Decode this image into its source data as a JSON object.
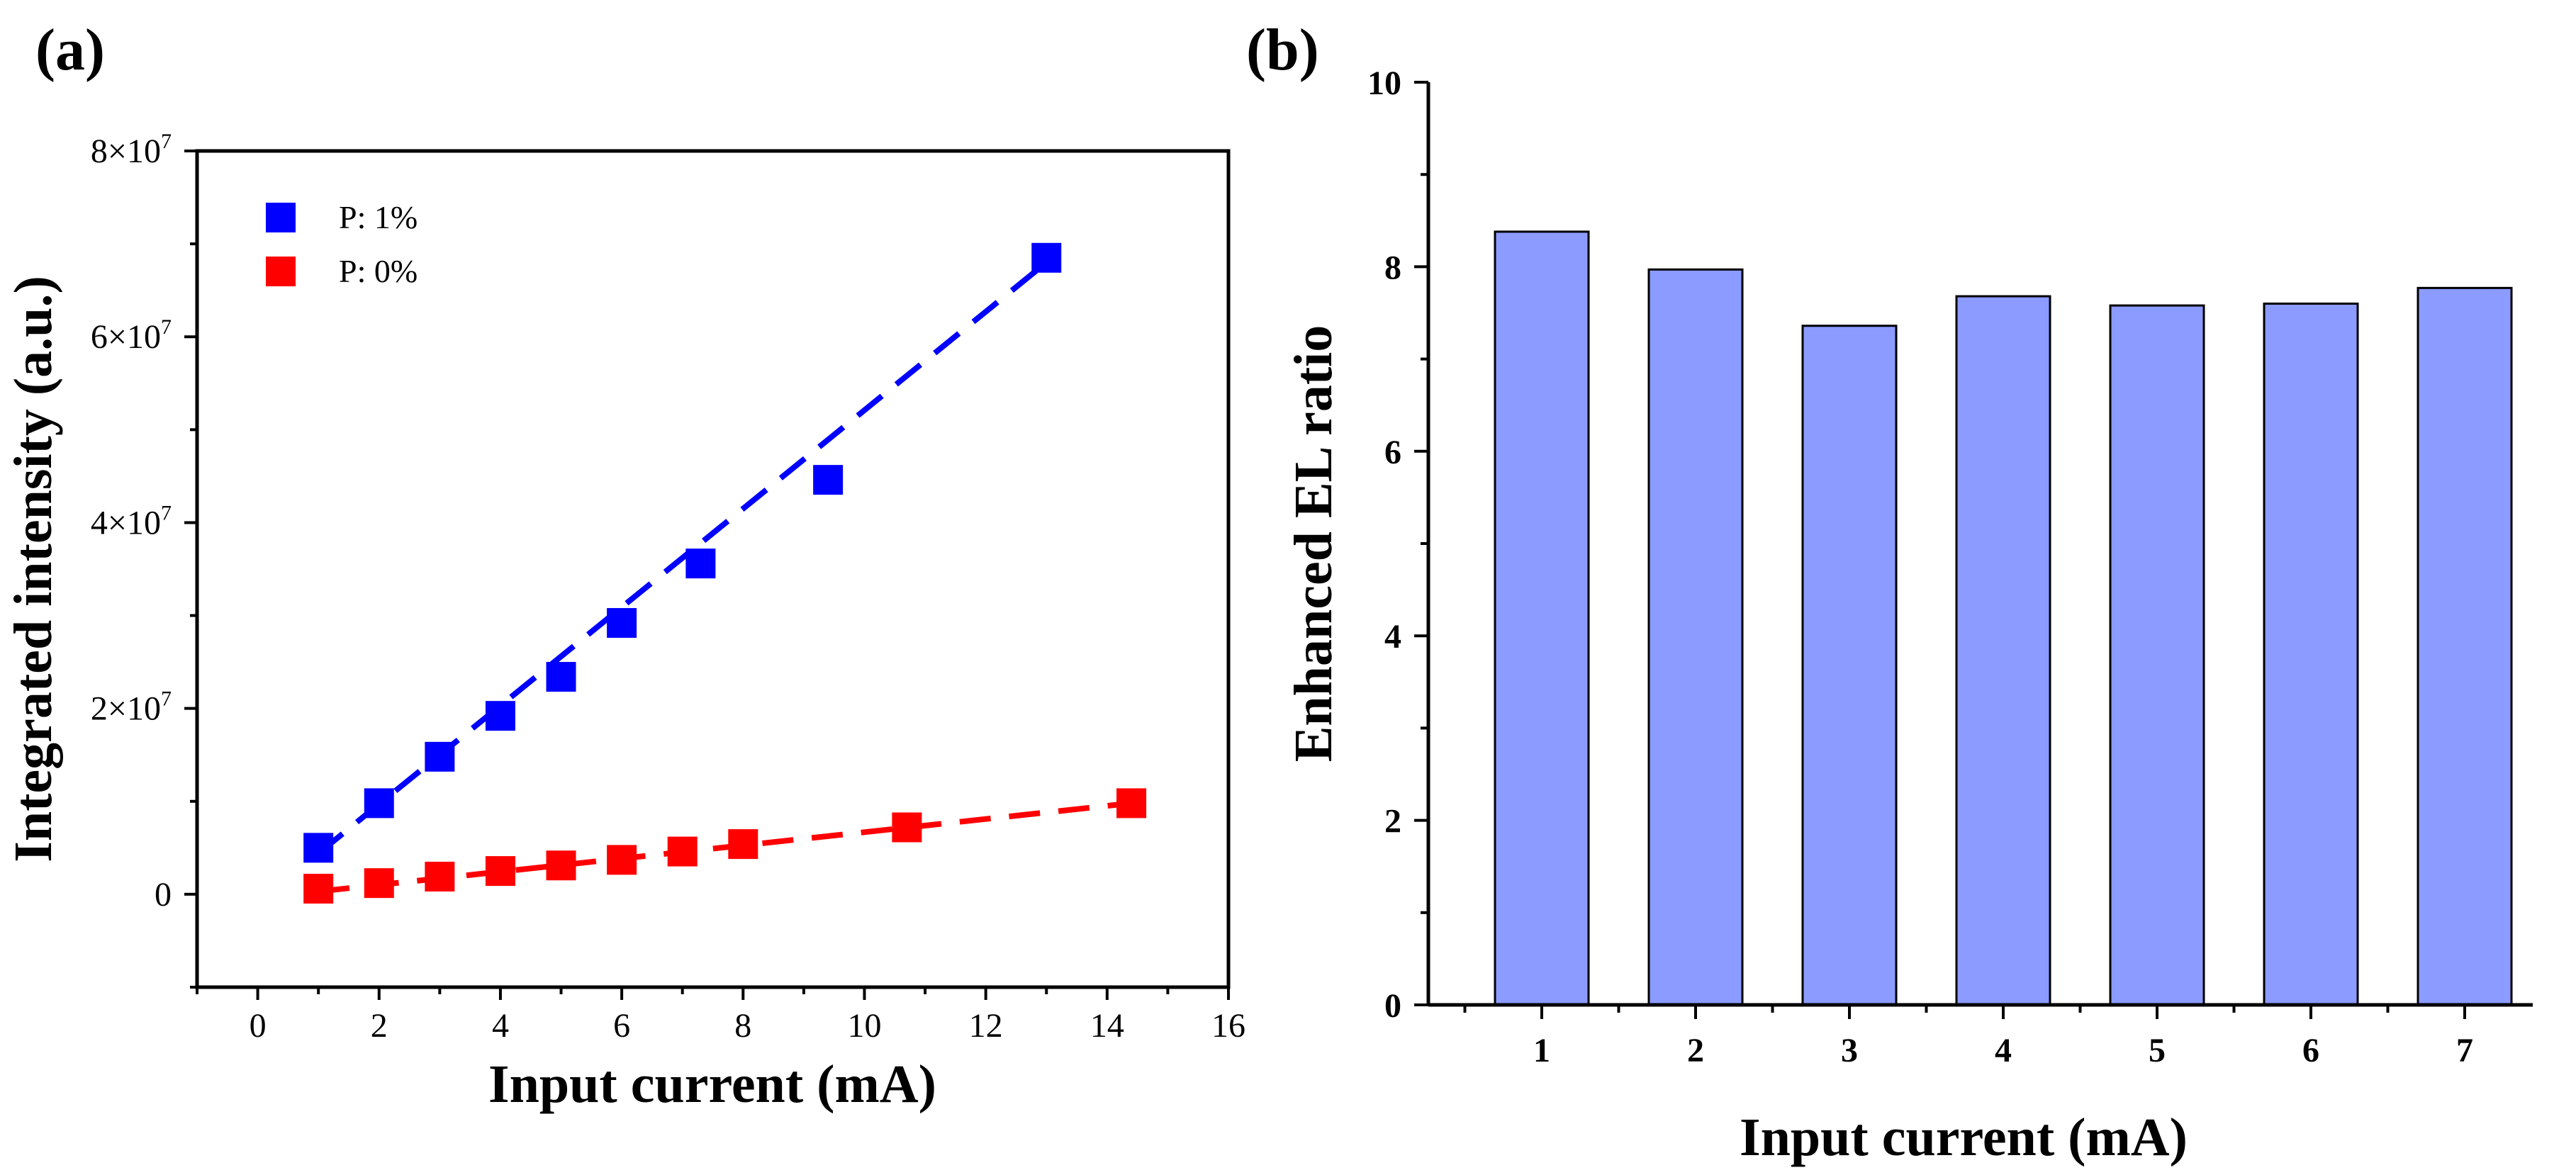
{
  "chart_data": [
    {
      "panel_label": "(a)",
      "type": "scatter",
      "xlabel": "Input current (mA)",
      "ylabel": "Integrated intensity (a.u.)",
      "xlim": [
        -1,
        16
      ],
      "ylim": [
        -10000000,
        80000000
      ],
      "x_ticks": [
        0,
        2,
        4,
        6,
        8,
        10,
        12,
        14,
        16
      ],
      "y_ticks": [
        {
          "value": 0,
          "mantissa": "0",
          "exp": ""
        },
        {
          "value": 20000000,
          "mantissa": "2×10",
          "exp": "7"
        },
        {
          "value": 40000000,
          "mantissa": "4×10",
          "exp": "7"
        },
        {
          "value": 60000000,
          "mantissa": "6×10",
          "exp": "7"
        },
        {
          "value": 80000000,
          "mantissa": "8×10",
          "exp": "7"
        }
      ],
      "legend_position": "top-left",
      "series": [
        {
          "name": "P: 1%",
          "color": "#0000ff",
          "x": [
            1.0,
            2.0,
            3.0,
            4.0,
            5.0,
            6.0,
            7.3,
            9.4,
            13.0
          ],
          "y": [
            5000000,
            9800000,
            14800000,
            19200000,
            23400000,
            29200000,
            35600000,
            44600000,
            68500000
          ],
          "fit": {
            "x": [
              1.0,
              13.0
            ],
            "y": [
              4400000,
              68000000
            ]
          }
        },
        {
          "name": "P: 0%",
          "color": "#ff0000",
          "x": [
            1.0,
            2.0,
            3.0,
            4.0,
            5.0,
            6.0,
            7.0,
            8.0,
            10.7,
            14.4
          ],
          "y": [
            600000,
            1200000,
            1900000,
            2500000,
            3100000,
            3700000,
            4600000,
            5400000,
            7200000,
            9800000
          ],
          "fit": {
            "x": [
              1.0,
              14.4
            ],
            "y": [
              300000,
              9800000
            ]
          }
        }
      ]
    },
    {
      "panel_label": "(b)",
      "type": "bar",
      "xlabel": "Input current (mA)",
      "ylabel": "Enhanced EL ratio",
      "ylim": [
        0,
        10
      ],
      "y_ticks": [
        0,
        2,
        4,
        6,
        8,
        10
      ],
      "categories": [
        "1",
        "2",
        "3",
        "4",
        "5",
        "6",
        "7"
      ],
      "values": [
        8.38,
        7.97,
        7.36,
        7.68,
        7.58,
        7.6,
        7.77
      ],
      "bar_color": "#8c9bff"
    }
  ]
}
